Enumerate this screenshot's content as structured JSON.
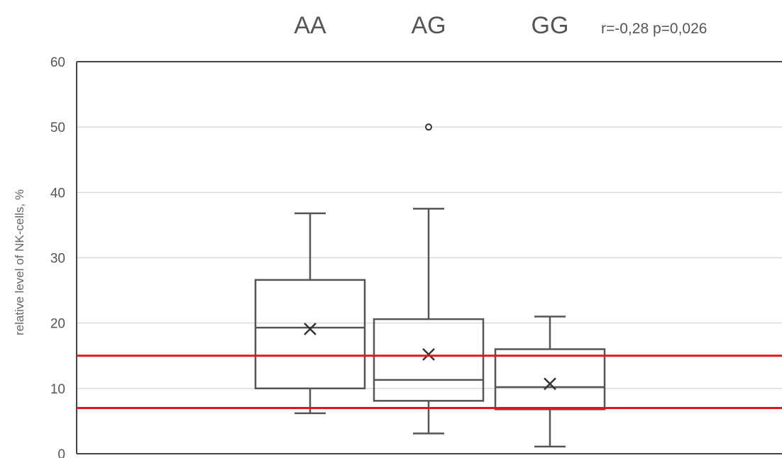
{
  "chart_data": {
    "type": "box",
    "categories": [
      "AA",
      "AG",
      "GG"
    ],
    "annotation": "r=-0,28 p=0,026",
    "ylabel": "relative level of NK-cells, %",
    "xlabel": "",
    "ylim": [
      0,
      60
    ],
    "yticks": [
      0,
      10,
      20,
      30,
      40,
      50,
      60
    ],
    "grid": true,
    "boxes": [
      {
        "category": "AA",
        "min": 6.2,
        "q1": 10.0,
        "median": 19.3,
        "q3": 26.6,
        "max": 36.8,
        "mean": 19.1,
        "outliers": []
      },
      {
        "category": "AG",
        "min": 3.1,
        "q1": 8.1,
        "median": 11.3,
        "q3": 20.6,
        "max": 37.5,
        "mean": 15.2,
        "outliers": [
          50.0
        ]
      },
      {
        "category": "GG",
        "min": 1.1,
        "q1": 6.8,
        "median": 10.2,
        "q3": 16.0,
        "max": 21.0,
        "mean": 10.7,
        "outliers": []
      }
    ],
    "reference_lines": [
      {
        "value": 15.0,
        "color": "#e8141b"
      },
      {
        "value": 7.0,
        "color": "#e8141b"
      }
    ],
    "box_color": "#555555"
  }
}
